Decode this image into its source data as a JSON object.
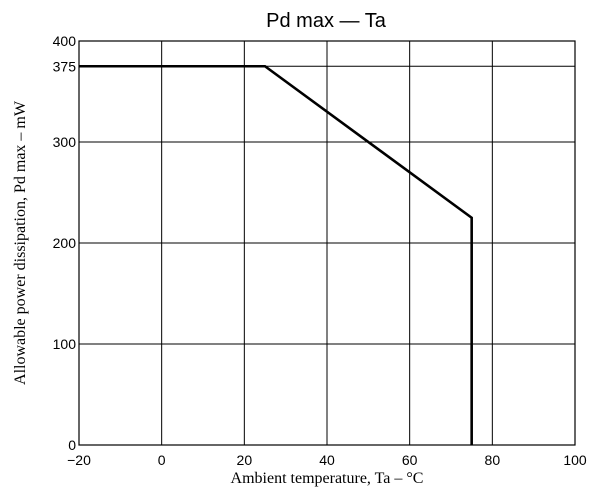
{
  "chart_data": {
    "type": "line",
    "title": "Pd max — Ta",
    "xlabel": "Ambient temperature, Ta – °C",
    "ylabel": "Allowable power dissipation, Pd max – mW",
    "xlim": [
      -20,
      100
    ],
    "ylim": [
      0,
      400
    ],
    "xticks": [
      -20,
      0,
      20,
      40,
      60,
      80,
      100
    ],
    "xtick_labels": [
      "−20",
      "0",
      "20",
      "40",
      "60",
      "80",
      "100"
    ],
    "yticks": [
      0,
      100,
      200,
      300,
      375,
      400
    ],
    "ytick_labels": [
      "0",
      "100",
      "200",
      "300",
      "375",
      "400"
    ],
    "grid": true,
    "series": [
      {
        "x": [
          -20,
          25,
          75,
          75
        ],
        "y": [
          375,
          375,
          225,
          0
        ]
      }
    ]
  }
}
